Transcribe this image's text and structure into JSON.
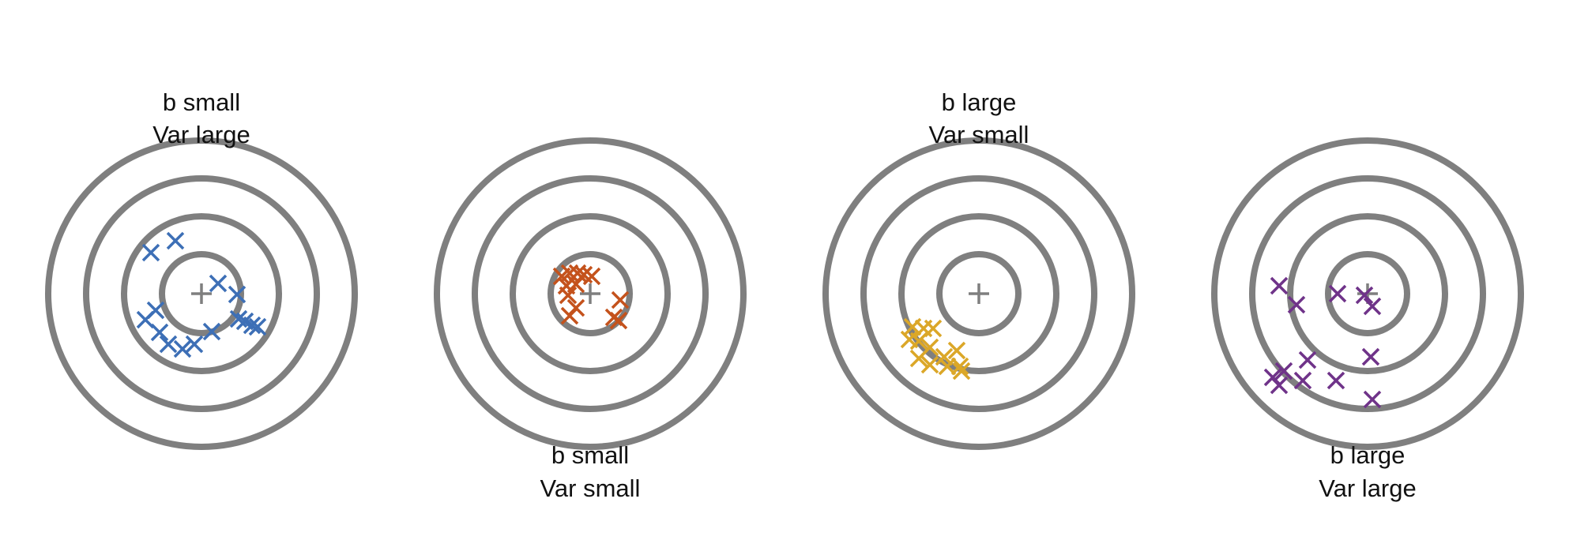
{
  "figure": {
    "ring_color": "#7f7f7f",
    "ring_count": 4,
    "center_marker": "plus-icon",
    "point_marker": "x-icon"
  },
  "targets": [
    {
      "id": "b-small-var-large",
      "label_position": "top",
      "label_line1": "b small",
      "label_line2": "Var large",
      "color": "#3d6fb6",
      "points": [
        [
          -64,
          52
        ],
        [
          -33,
          67
        ],
        [
          21,
          13
        ],
        [
          45,
          -1
        ],
        [
          -58,
          -21
        ],
        [
          -71,
          -33
        ],
        [
          -53,
          -49
        ],
        [
          -42,
          -64
        ],
        [
          -9,
          -64
        ],
        [
          13,
          -48
        ],
        [
          47,
          -32
        ],
        [
          55,
          -35
        ],
        [
          64,
          -40
        ],
        [
          71,
          -42
        ],
        [
          -24,
          -70
        ]
      ]
    },
    {
      "id": "b-small-var-small",
      "label_position": "bottom",
      "label_line1": "b small",
      "label_line2": "Var small",
      "color": "#c4521c",
      "points": [
        [
          -36,
          22
        ],
        [
          -26,
          26
        ],
        [
          -16,
          26
        ],
        [
          -8,
          24
        ],
        [
          2,
          22
        ],
        [
          -30,
          10
        ],
        [
          -18,
          12
        ],
        [
          -28,
          -2
        ],
        [
          -18,
          -18
        ],
        [
          -26,
          -28
        ],
        [
          38,
          -8
        ],
        [
          30,
          -30
        ],
        [
          36,
          -34
        ]
      ]
    },
    {
      "id": "b-large-var-small",
      "label_position": "top",
      "label_line1": "b large",
      "label_line2": "Var small",
      "color": "#dba728",
      "points": [
        [
          -84,
          -42
        ],
        [
          -70,
          -44
        ],
        [
          -58,
          -44
        ],
        [
          -76,
          -60
        ],
        [
          -62,
          -68
        ],
        [
          -88,
          -58
        ],
        [
          -76,
          -82
        ],
        [
          -62,
          -90
        ],
        [
          -44,
          -80
        ],
        [
          -40,
          -92
        ],
        [
          -24,
          -92
        ],
        [
          -28,
          -72
        ],
        [
          -22,
          -98
        ]
      ]
    },
    {
      "id": "b-large-var-large",
      "label_position": "bottom",
      "label_line1": "b large",
      "label_line2": "Var large",
      "color": "#6f3389",
      "points": [
        [
          -112,
          10
        ],
        [
          -90,
          -14
        ],
        [
          -38,
          0
        ],
        [
          -4,
          -2
        ],
        [
          6,
          -16
        ],
        [
          -120,
          -106
        ],
        [
          -106,
          -98
        ],
        [
          -82,
          -110
        ],
        [
          -76,
          -84
        ],
        [
          -40,
          -110
        ],
        [
          -112,
          -116
        ],
        [
          4,
          -80
        ],
        [
          6,
          -134
        ]
      ]
    }
  ]
}
